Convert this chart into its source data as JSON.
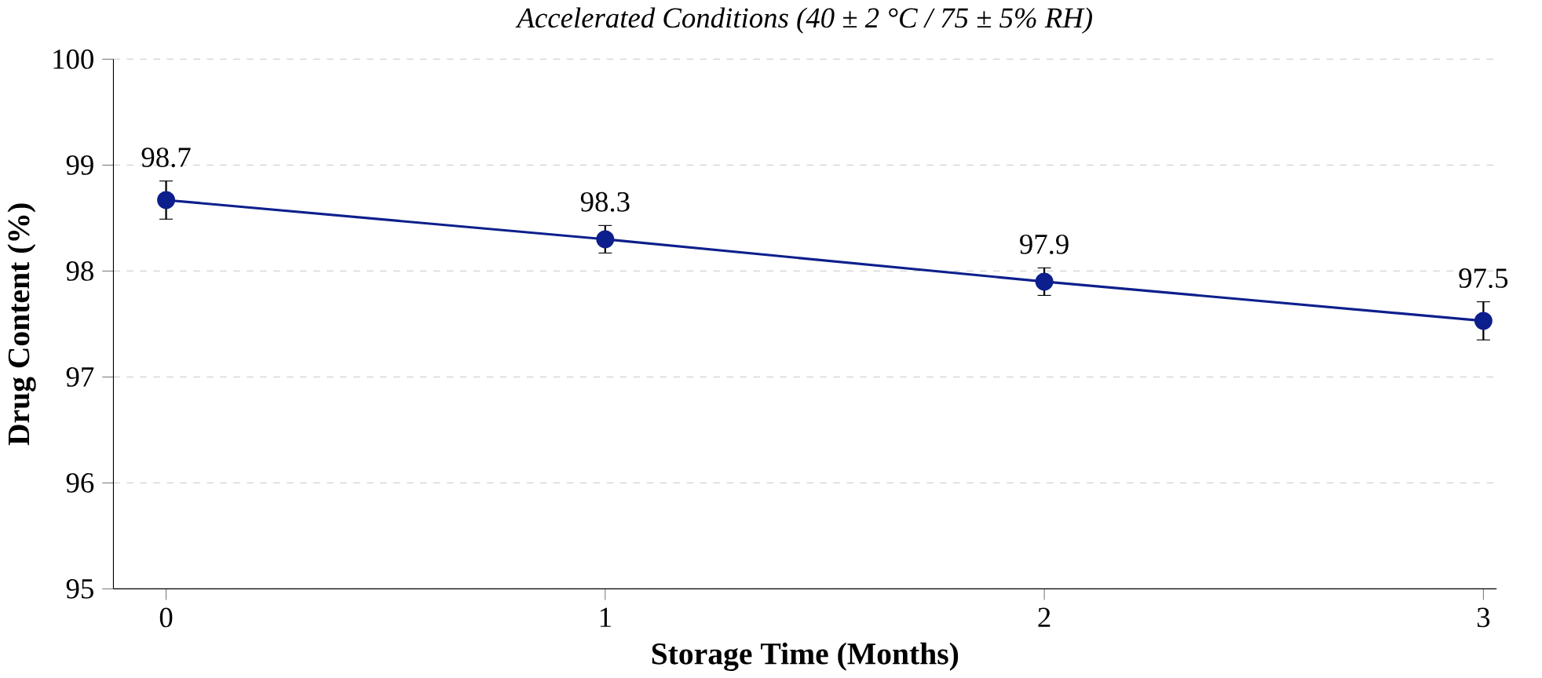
{
  "chart_data": {
    "type": "line",
    "title": "Accelerated Conditions (40 ± 2 °C / 75 ± 5% RH)",
    "xlabel": "Storage Time (Months)",
    "ylabel": "Drug Content (%)",
    "x": [
      0,
      1,
      2,
      3
    ],
    "xlim": [
      -0.12,
      3.03
    ],
    "xticks": [
      0,
      1,
      2,
      3
    ],
    "ylim": [
      95,
      100
    ],
    "yticks": [
      95,
      96,
      97,
      98,
      99,
      100
    ],
    "series": [
      {
        "color": "#0d1f8c",
        "values": [
          98.67,
          98.3,
          97.9,
          97.53
        ],
        "errors": [
          0.18,
          0.13,
          0.13,
          0.18
        ],
        "value_labels": [
          "98.7",
          "98.3",
          "97.9",
          "97.5"
        ]
      }
    ],
    "marker": "circle",
    "line_style": "solid",
    "grid": "y"
  }
}
